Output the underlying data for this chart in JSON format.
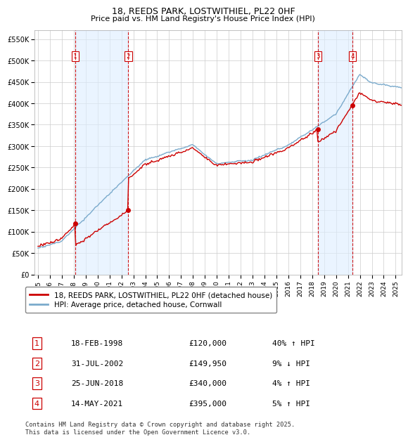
{
  "title_line1": "18, REEDS PARK, LOSTWITHIEL, PL22 0HF",
  "title_line2": "Price paid vs. HM Land Registry's House Price Index (HPI)",
  "ylabel_ticks": [
    "£0",
    "£50K",
    "£100K",
    "£150K",
    "£200K",
    "£250K",
    "£300K",
    "£350K",
    "£400K",
    "£450K",
    "£500K",
    "£550K"
  ],
  "ytick_values": [
    0,
    50000,
    100000,
    150000,
    200000,
    250000,
    300000,
    350000,
    400000,
    450000,
    500000,
    550000
  ],
  "ylim": [
    0,
    570000
  ],
  "xlim_start": 1994.7,
  "xlim_end": 2025.5,
  "sale_dates": [
    1998.12,
    2002.58,
    2018.48,
    2021.37
  ],
  "sale_prices": [
    120000,
    149950,
    340000,
    395000
  ],
  "sale_labels": [
    "1",
    "2",
    "3",
    "4"
  ],
  "legend_entries": [
    "18, REEDS PARK, LOSTWITHIEL, PL22 0HF (detached house)",
    "HPI: Average price, detached house, Cornwall"
  ],
  "legend_colors": [
    "#cc0000",
    "#7aaacc"
  ],
  "table_rows": [
    [
      "1",
      "18-FEB-1998",
      "£120,000",
      "40% ↑ HPI"
    ],
    [
      "2",
      "31-JUL-2002",
      "£149,950",
      "9% ↓ HPI"
    ],
    [
      "3",
      "25-JUN-2018",
      "£340,000",
      "4% ↑ HPI"
    ],
    [
      "4",
      "14-MAY-2021",
      "£395,000",
      "5% ↑ HPI"
    ]
  ],
  "footnote": "Contains HM Land Registry data © Crown copyright and database right 2025.\nThis data is licensed under the Open Government Licence v3.0.",
  "background_color": "#ffffff",
  "grid_color": "#cccccc",
  "hpi_shade_color": "#ddeeff",
  "dashed_line_color": "#cc0000",
  "sale_box_color": "#cc0000",
  "sale_box_fill": "#ffffff"
}
